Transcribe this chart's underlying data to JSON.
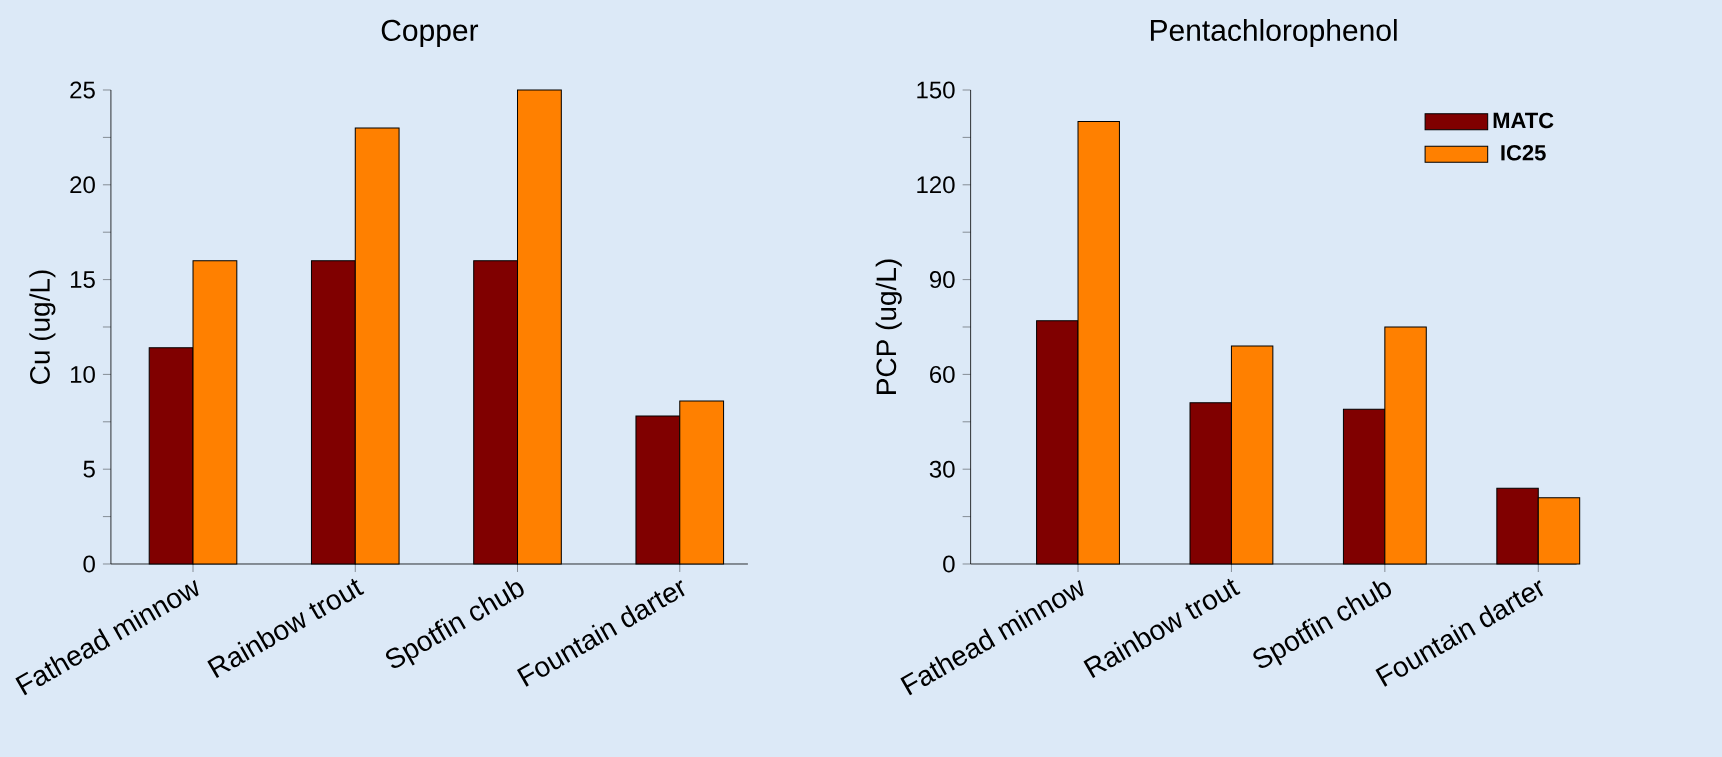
{
  "chart_data": [
    {
      "type": "bar",
      "title": "Copper",
      "ylabel": "Cu (ug/L)",
      "categories": [
        "Fathead minnow",
        "Rainbow trout",
        "Spotfin chub",
        "Fountain darter"
      ],
      "series": [
        {
          "color": "#800000",
          "values": [
            11.4,
            16,
            16,
            7.8
          ]
        },
        {
          "color": "#ff8000",
          "values": [
            16,
            23,
            25,
            8.6
          ]
        }
      ],
      "ylim": [
        0,
        25
      ],
      "yticks": [
        0,
        {
          "value": 2.5,
          "label": null
        },
        5,
        {
          "value": 7.5,
          "label": null
        },
        10,
        {
          "value": 12.5,
          "label": null
        },
        15,
        {
          "value": 17.5,
          "label": null
        },
        20,
        {
          "value": 22.5,
          "label": null
        },
        25
      ]
    },
    {
      "type": "bar",
      "title": "Pentachlorophenol",
      "ylabel": "PCP (ug/L)",
      "categories": [
        "Fathead minnow",
        "Rainbow trout",
        "Spotfin chub",
        "Fountain darter"
      ],
      "series": [
        {
          "name": "MATC",
          "color": "#800000",
          "values": [
            77,
            51,
            49,
            24
          ]
        },
        {
          "name": "IC25",
          "color": "#ff8000",
          "values": [
            140,
            69,
            75,
            21
          ]
        }
      ],
      "ylim": [
        0,
        150
      ],
      "yticks": [
        0,
        {
          "value": 15,
          "label": null
        },
        30,
        {
          "value": 45,
          "label": null
        },
        60,
        {
          "value": 75,
          "label": null
        },
        90,
        {
          "value": 105,
          "label": null
        },
        120,
        {
          "value": 135,
          "label": null
        },
        150
      ],
      "legend": "top right"
    }
  ]
}
